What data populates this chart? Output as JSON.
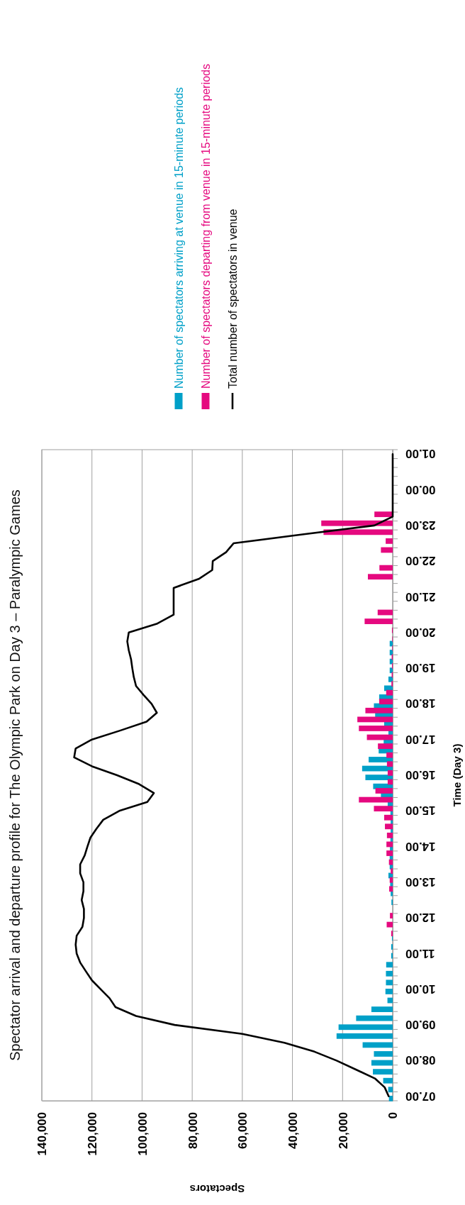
{
  "chart_data": {
    "type": "bar",
    "orientation": "horizontal",
    "title": "Spectator arrival and departure profile for The Olympic Park on Day 3 – Paralympic Games",
    "xlabel": "Spectators",
    "ylabel": "Time (Day 3)",
    "categories": [
      "01.00",
      null,
      null,
      null,
      "00.00",
      null,
      null,
      null,
      "23.00",
      null,
      null,
      null,
      "22.00",
      null,
      null,
      null,
      "21.00",
      null,
      null,
      null,
      "20.00",
      null,
      null,
      null,
      "19.00",
      null,
      null,
      null,
      "18.00",
      null,
      null,
      null,
      "17.00",
      null,
      null,
      null,
      "16.00",
      null,
      null,
      null,
      "15.00",
      null,
      null,
      null,
      "14.00",
      null,
      null,
      null,
      "13.00",
      null,
      null,
      null,
      "12.00",
      null,
      null,
      null,
      "11.00",
      null,
      null,
      null,
      "10.00",
      null,
      null,
      null,
      "09.00",
      null,
      null,
      null,
      "08.00",
      null,
      null,
      null,
      "07.00"
    ],
    "series": [
      {
        "name": "Number of spectators arriving at venue in 15-minute periods",
        "color": "#00a0c8",
        "values": [
          null,
          null,
          null,
          null,
          null,
          null,
          null,
          null,
          null,
          null,
          null,
          null,
          null,
          null,
          null,
          null,
          null,
          null,
          null,
          null,
          null,
          1200,
          1200,
          1200,
          1200,
          1700,
          3400,
          5400,
          7500,
          7000,
          3400,
          1700,
          3600,
          5600,
          9600,
          12200,
          10900,
          7800,
          4700,
          2000,
          900,
          800,
          800,
          900,
          1100,
          1200,
          1200,
          1700,
          1000,
          800,
          500,
          null,
          null,
          null,
          300,
          600,
          600,
          2600,
          2700,
          2700,
          2900,
          2100,
          8500,
          14600,
          21600,
          22400,
          12000,
          7500,
          8500,
          7900,
          3800,
          1800,
          1500
        ]
      },
      {
        "name": "Number of spectators departing from venue in 15-minute periods",
        "color": "#e5097f",
        "values": [
          null,
          null,
          null,
          null,
          null,
          null,
          null,
          7300,
          28500,
          27600,
          2800,
          4700,
          null,
          5300,
          9900,
          null,
          null,
          null,
          6000,
          11200,
          300,
          200,
          200,
          400,
          300,
          400,
          500,
          2600,
          5400,
          10900,
          14100,
          13500,
          10300,
          5900,
          2500,
          2300,
          2000,
          2000,
          6900,
          13500,
          7500,
          3400,
          3100,
          2300,
          2500,
          2500,
          1500,
          800,
          1200,
          1400,
          null,
          null,
          1100,
          2400,
          600,
          null,
          null,
          null,
          null,
          null,
          null,
          null,
          null,
          null,
          null,
          null,
          null,
          null,
          null,
          null,
          null,
          null,
          null
        ]
      },
      {
        "name": "Total number of spectators in venue",
        "type": "line",
        "color": "#000000",
        "values": [
          0,
          0,
          0,
          0,
          0,
          0,
          0,
          0,
          7300,
          36000,
          63500,
          66500,
          71800,
          72000,
          77400,
          87400,
          87400,
          87400,
          87400,
          93900,
          105300,
          105900,
          105300,
          104400,
          103900,
          103300,
          102400,
          99400,
          96200,
          94100,
          98200,
          108800,
          120000,
          126500,
          127100,
          120000,
          110000,
          101200,
          95300,
          97900,
          109100,
          115500,
          118200,
          120600,
          121800,
          122900,
          124700,
          124700,
          123400,
          123400,
          124100,
          123200,
          123200,
          123800,
          126100,
          126500,
          126100,
          124700,
          122400,
          120000,
          116500,
          113000,
          110600,
          102400,
          87000,
          60000,
          43200,
          31200,
          22400,
          14700,
          7100,
          3200,
          1600
        ]
      }
    ],
    "xlim": [
      140000,
      0
    ],
    "xticks": [
      {
        "value": 140000,
        "label": "140,000"
      },
      {
        "value": 120000,
        "label": "120,000"
      },
      {
        "value": 100000,
        "label": "100,000"
      },
      {
        "value": 80000,
        "label": "80,000"
      },
      {
        "value": 60000,
        "label": "60,000"
      },
      {
        "value": 40000,
        "label": "40,000"
      },
      {
        "value": 20000,
        "label": "20,000"
      },
      0
    ],
    "grid": "x",
    "legend": "top",
    "line_style": "solid"
  }
}
